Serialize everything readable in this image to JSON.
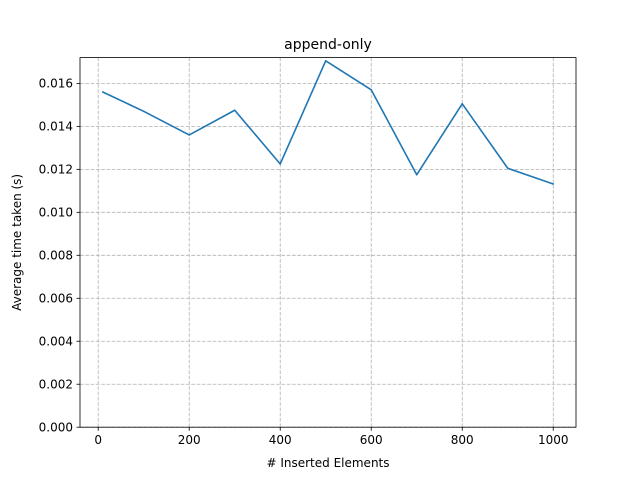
{
  "chart_data": {
    "type": "line",
    "title": "append-only",
    "xlabel": "# Inserted Elements",
    "ylabel": "Average time taken (s)",
    "xlim": [
      -40,
      1050
    ],
    "ylim": [
      0,
      0.0172
    ],
    "xticks": [
      0,
      200,
      400,
      600,
      800,
      1000
    ],
    "xtick_labels": [
      "0",
      "200",
      "400",
      "600",
      "800",
      "1000"
    ],
    "yticks": [
      0,
      0.002,
      0.004,
      0.006,
      0.008,
      0.01,
      0.012,
      0.014,
      0.016
    ],
    "ytick_labels": [
      "0.000",
      "0.002",
      "0.004",
      "0.006",
      "0.008",
      "0.010",
      "0.012",
      "0.014",
      "0.016"
    ],
    "grid": true,
    "series": [
      {
        "color": "#1f77b4",
        "x": [
          10,
          100,
          200,
          300,
          400,
          500,
          600,
          700,
          800,
          900,
          1000
        ],
        "y": [
          0.0156,
          0.0147,
          0.0136,
          0.01475,
          0.01225,
          0.01705,
          0.0157,
          0.01175,
          0.01505,
          0.01205,
          0.01132
        ]
      }
    ]
  }
}
